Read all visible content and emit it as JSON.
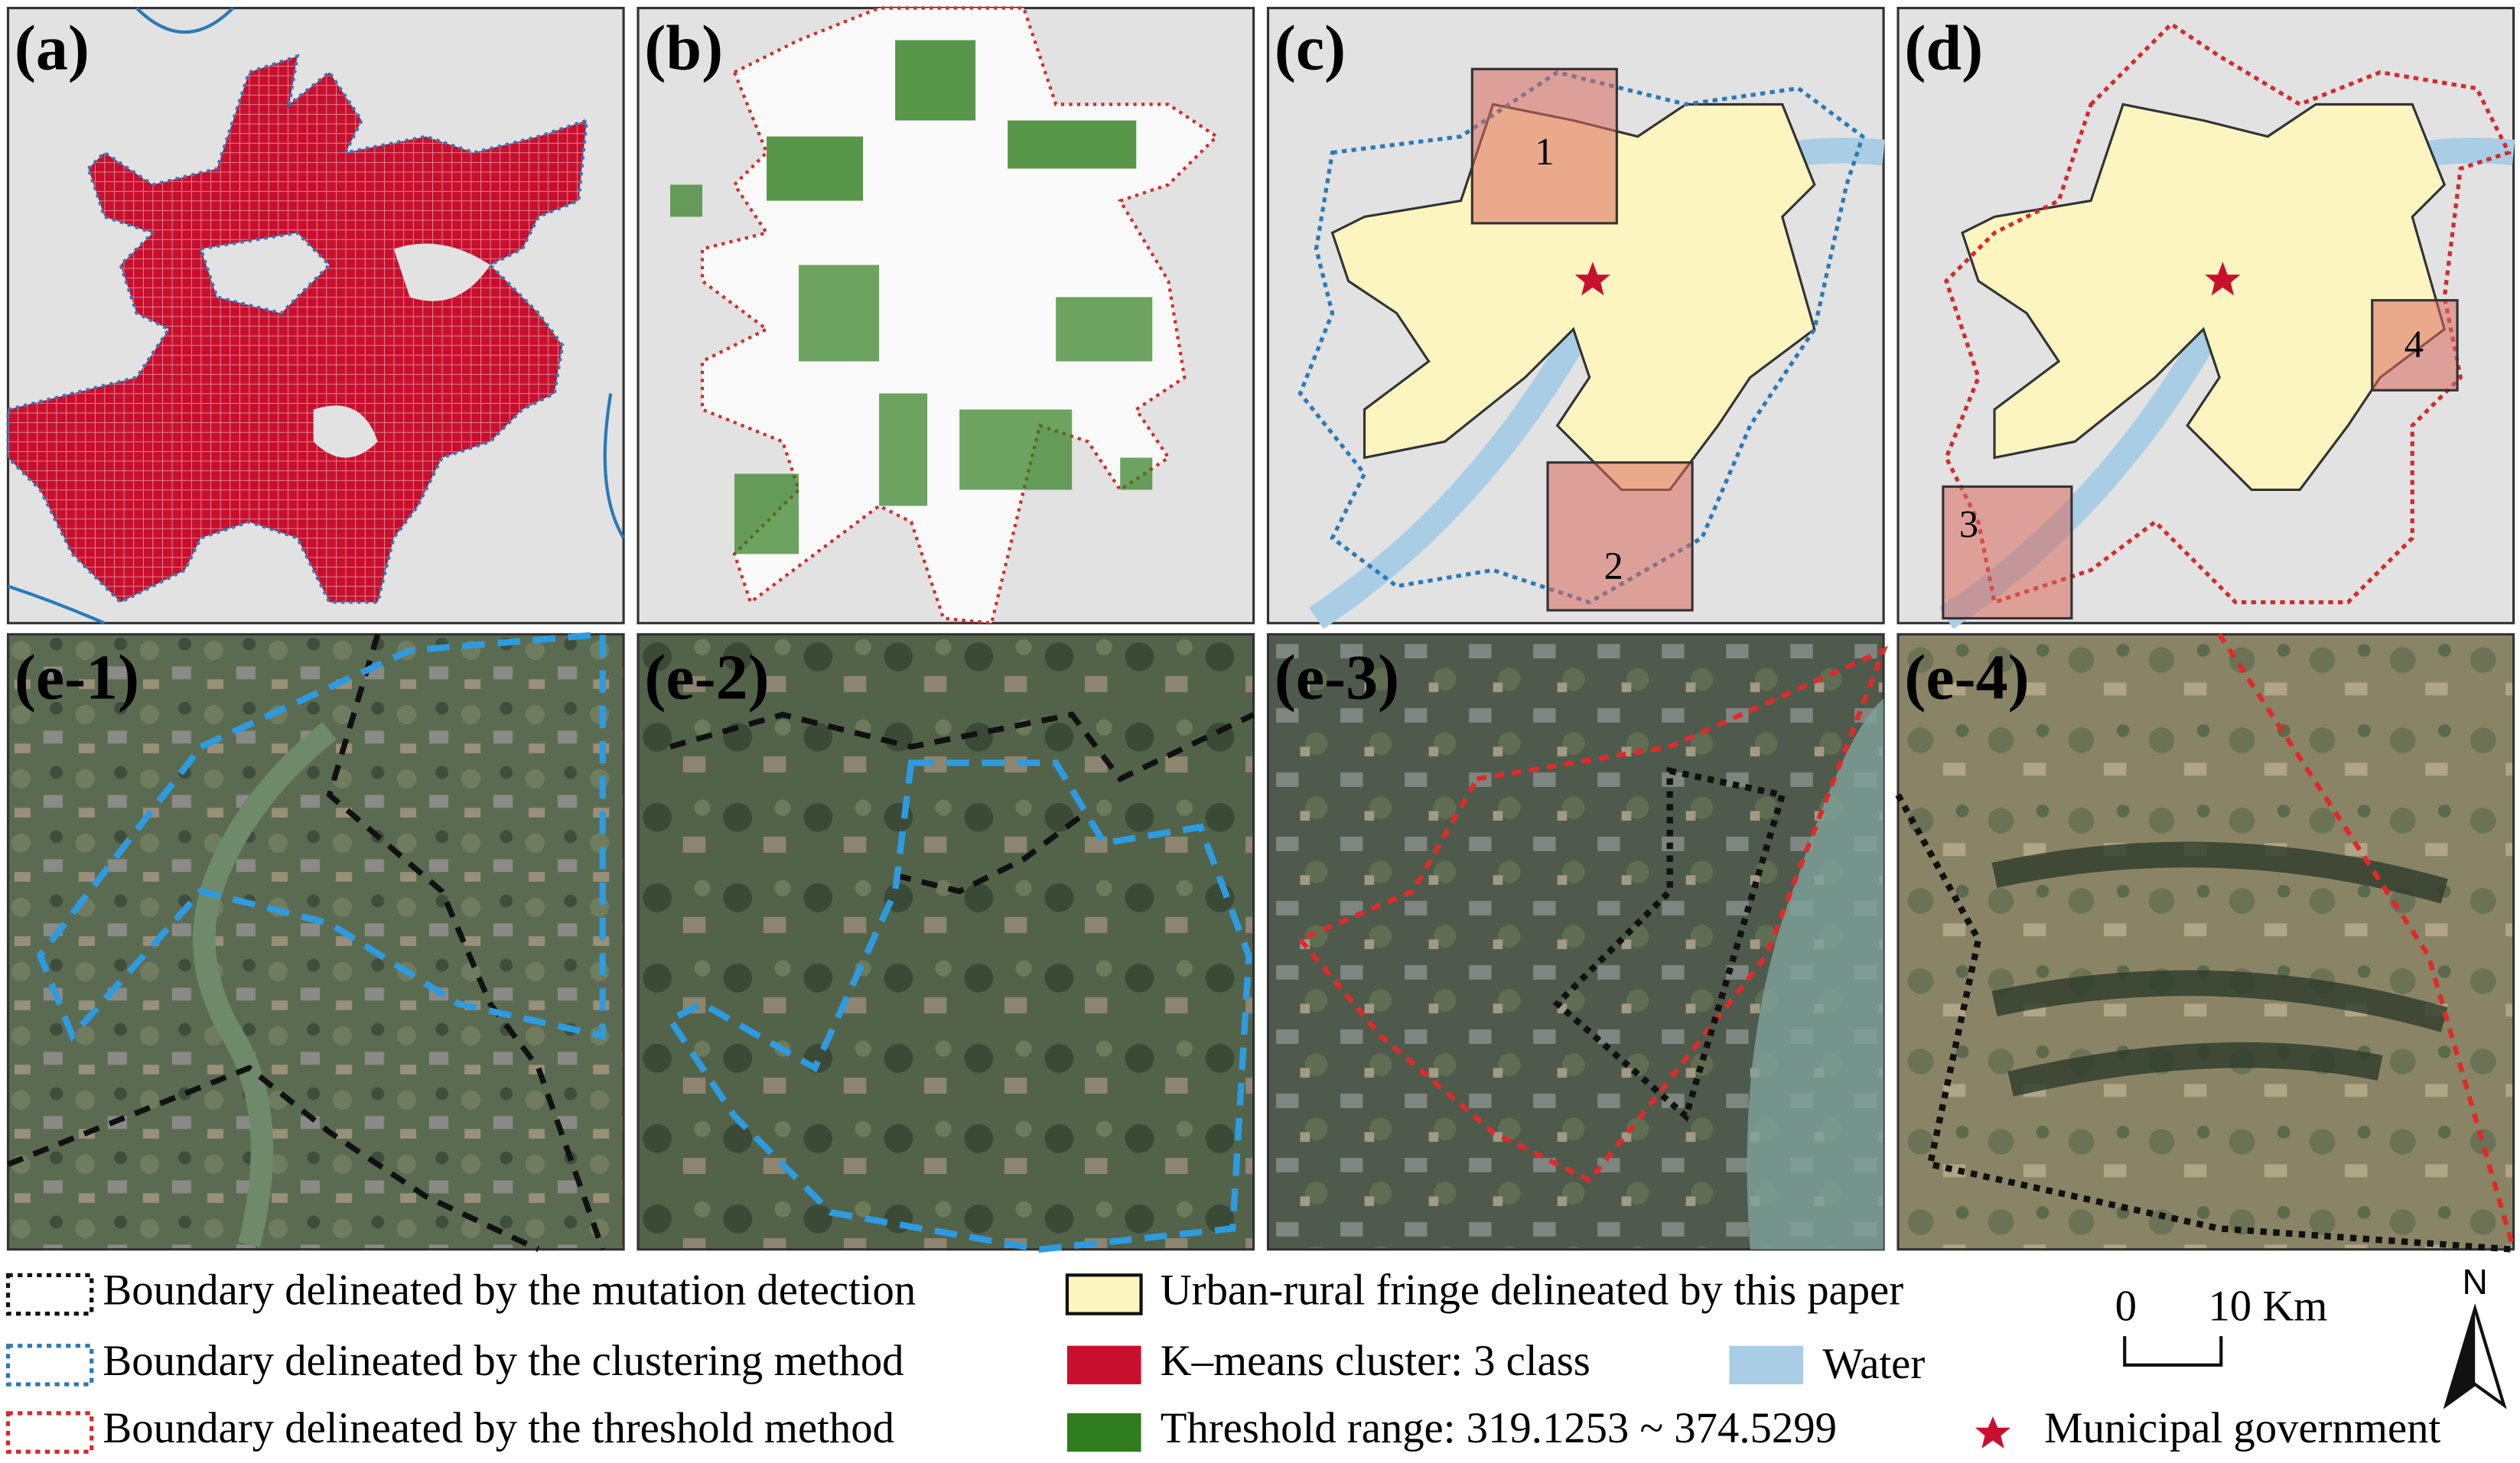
{
  "panels": {
    "a": {
      "label": "(a)"
    },
    "b": {
      "label": "(b)"
    },
    "c": {
      "label": "(c)",
      "boxes": [
        "1",
        "2"
      ]
    },
    "d": {
      "label": "(d)",
      "boxes": [
        "3",
        "4"
      ]
    },
    "e1": {
      "label": "(e-1)"
    },
    "e2": {
      "label": "(e-2)"
    },
    "e3": {
      "label": "(e-3)"
    },
    "e4": {
      "label": "(e-4)"
    }
  },
  "legend": {
    "items": [
      "Boundary delineated by the mutation detection",
      "Boundary delineated by the clustering method",
      "Boundary delineated by the threshold method",
      "Urban-rural fringe delineated by this paper",
      "K–means cluster: 3 class",
      "Threshold range: 319.1253 ~ 374.5299",
      "Water",
      "Municipal government"
    ]
  },
  "scale_bar": {
    "start": "0",
    "end": "10 Km"
  },
  "north": "N"
}
